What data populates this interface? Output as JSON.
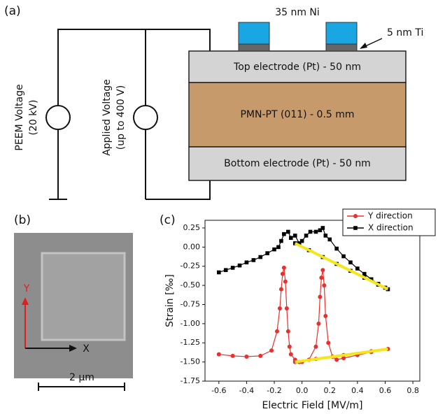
{
  "panel_a": {
    "label": "(a)",
    "ni": "35 nm Ni",
    "ti": "5 nm Ti",
    "top": "Top electrode (Pt) - 50 nm",
    "middle": "PMN-PT (011) - 0.5 mm",
    "bottom": "Bottom electrode (Pt) - 50 nm",
    "peem": [
      "PEEM Voltage",
      "(20 kV)"
    ],
    "applied": [
      "Applied Voltage",
      "(up to 400 V)"
    ]
  },
  "panel_b": {
    "label": "(b)",
    "y_arrow": "Y",
    "x_arrow": "X",
    "scale": "2 µm"
  },
  "panel_c": {
    "label": "(c)"
  },
  "chart_data": {
    "type": "line",
    "x_label": "Electric Field [MV/m]",
    "y_label": "Strain [‰]",
    "xlim": [
      -0.7,
      0.85
    ],
    "ylim": [
      -1.75,
      0.35
    ],
    "xticks": [
      -0.6,
      -0.4,
      -0.2,
      {
        "value": 0,
        "label": "0.0"
      },
      0.2,
      0.4,
      0.6,
      0.8
    ],
    "yticks": [
      0.25,
      {
        "value": 0,
        "label": "0.00"
      },
      -0.25,
      {
        "value": -0.5,
        "label": "-0.50"
      },
      -0.75,
      {
        "value": -1,
        "label": "-1.00"
      },
      -1.25,
      {
        "value": -1.5,
        "label": "-1.50"
      },
      -1.75
    ],
    "legend": "top-right",
    "series": [
      {
        "name": "X direction",
        "color": "#000000",
        "marker": "square",
        "x": [
          -0.6,
          -0.55,
          -0.5,
          -0.45,
          -0.4,
          -0.35,
          -0.3,
          -0.25,
          -0.2,
          -0.17,
          -0.15,
          -0.13,
          -0.1,
          -0.08,
          -0.05,
          -0.02,
          0,
          0.03,
          0.06,
          0.1,
          0.13,
          0.15,
          0.17,
          0.2,
          0.25,
          0.3,
          0.35,
          0.4,
          0.45,
          0.5,
          0.55,
          0.6,
          0.62,
          0.55,
          0.45,
          0.35,
          0.25,
          0.15,
          0.05,
          -0.05
        ],
        "values": [
          -0.33,
          -0.3,
          -0.27,
          -0.24,
          -0.2,
          -0.17,
          -0.13,
          -0.08,
          -0.03,
          0.0,
          0.08,
          0.17,
          0.2,
          0.12,
          0.15,
          0.05,
          0.08,
          0.15,
          0.2,
          0.2,
          0.22,
          0.25,
          0.15,
          0.1,
          -0.02,
          -0.12,
          -0.2,
          -0.28,
          -0.35,
          -0.42,
          -0.48,
          -0.53,
          -0.55,
          -0.49,
          -0.4,
          -0.31,
          -0.22,
          -0.13,
          -0.04,
          0.05
        ]
      },
      {
        "name": "Y direction",
        "color": "#e8302e",
        "marker": "circle",
        "x": [
          -0.6,
          -0.5,
          -0.4,
          -0.3,
          -0.22,
          -0.18,
          -0.16,
          -0.15,
          -0.14,
          -0.13,
          -0.12,
          -0.11,
          -0.1,
          -0.09,
          -0.08,
          -0.05,
          -0.02,
          0,
          0.05,
          0.1,
          0.12,
          0.13,
          0.14,
          0.15,
          0.16,
          0.17,
          0.19,
          0.22,
          0.25,
          0.3,
          0.4,
          0.5,
          0.62,
          0.5,
          0.3,
          0.1,
          -0.05
        ],
        "values": [
          -1.4,
          -1.42,
          -1.43,
          -1.42,
          -1.35,
          -1.1,
          -0.8,
          -0.55,
          -0.35,
          -0.27,
          -0.45,
          -0.8,
          -1.1,
          -1.3,
          -1.4,
          -1.47,
          -1.5,
          -1.5,
          -1.47,
          -1.3,
          -1.0,
          -0.65,
          -0.4,
          -0.3,
          -0.5,
          -0.9,
          -1.25,
          -1.43,
          -1.47,
          -1.45,
          -1.41,
          -1.37,
          -1.33,
          -1.36,
          -1.41,
          -1.46,
          -1.5
        ]
      }
    ],
    "fits": [
      {
        "color": "#f5e61c",
        "x": [
          -0.05,
          0.62
        ],
        "values": [
          0.05,
          -0.55
        ]
      },
      {
        "color": "#f5e61c",
        "x": [
          -0.05,
          0.62
        ],
        "values": [
          -1.5,
          -1.33
        ]
      }
    ]
  }
}
